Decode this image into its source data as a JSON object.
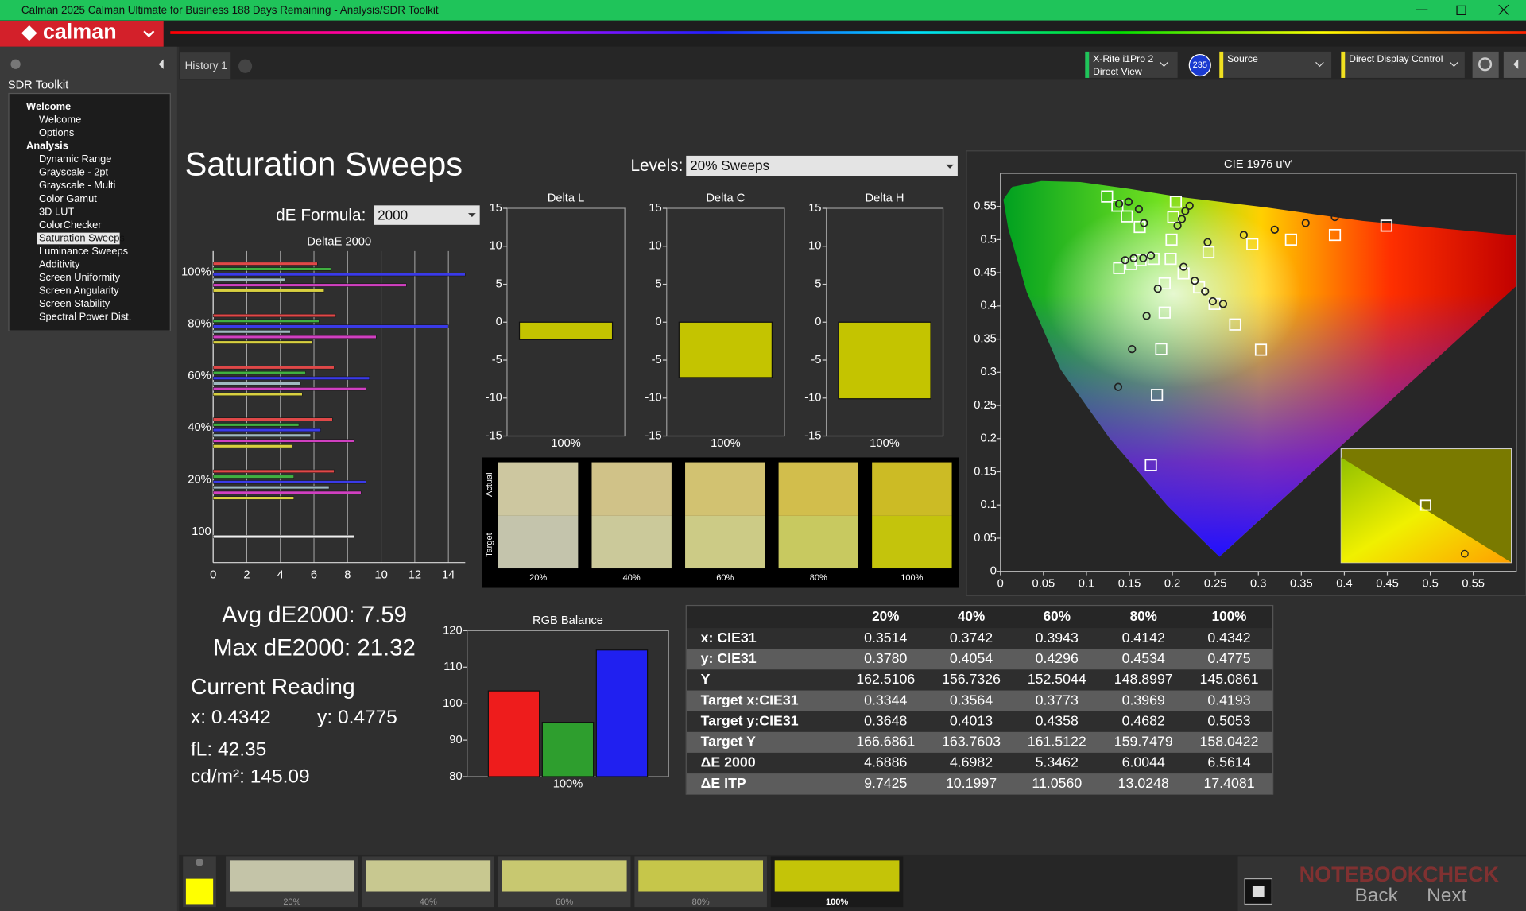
{
  "window": {
    "title": "Calman 2025 Calman Ultimate for Business 188 Days Remaining  - Analysis/SDR Toolkit"
  },
  "logo": "calman",
  "sidebar": {
    "title": "SDR Toolkit",
    "tree": [
      {
        "label": "Welcome",
        "header": true
      },
      {
        "label": "Welcome"
      },
      {
        "label": "Options"
      },
      {
        "label": "Analysis",
        "header": true
      },
      {
        "label": "Dynamic Range"
      },
      {
        "label": "Grayscale - 2pt"
      },
      {
        "label": "Grayscale - Multi"
      },
      {
        "label": "Color Gamut"
      },
      {
        "label": "3D LUT"
      },
      {
        "label": "ColorChecker"
      },
      {
        "label": "Saturation Sweeps",
        "selected": true
      },
      {
        "label": "Luminance Sweeps"
      },
      {
        "label": "Additivity"
      },
      {
        "label": "Screen Uniformity"
      },
      {
        "label": "Screen Angularity"
      },
      {
        "label": "Screen Stability"
      },
      {
        "label": "Spectral Power Dist."
      }
    ]
  },
  "tabs": [
    "History 1"
  ],
  "toolbar": {
    "meter": [
      "X-Rite i1Pro 2",
      "Direct View"
    ],
    "badge": "235",
    "source": "Source",
    "display": "Direct Display Control"
  },
  "page_title": "Saturation Sweeps",
  "levels": {
    "label": "Levels:",
    "value": "20% Sweeps"
  },
  "formula": {
    "label": "dE Formula:",
    "value": "2000"
  },
  "chart_data": [
    {
      "type": "hbar",
      "title": "DeltaE 2000",
      "categories": [
        "100%",
        "80%",
        "60%",
        "40%",
        "20%",
        "100"
      ],
      "xlim": [
        0,
        15
      ],
      "xticks": [
        0,
        2,
        4,
        6,
        8,
        10,
        12,
        14
      ],
      "grid": true,
      "series": [
        {
          "color": "#e04848",
          "values": [
            6.2,
            7.3,
            7.2,
            7.1,
            7.2,
            null
          ]
        },
        {
          "color": "#40b040",
          "values": [
            7.0,
            6.3,
            5.5,
            5.1,
            4.8,
            null
          ]
        },
        {
          "color": "#3a3ae8",
          "values": [
            15.0,
            14.0,
            9.3,
            6.4,
            9.1,
            null
          ]
        },
        {
          "color": "#9fb8c0",
          "values": [
            4.3,
            4.6,
            5.2,
            5.8,
            6.9,
            null
          ]
        },
        {
          "color": "#d040c0",
          "values": [
            11.5,
            9.7,
            9.1,
            8.4,
            8.8,
            null
          ]
        },
        {
          "color": "#d8d040",
          "values": [
            6.6,
            5.9,
            5.3,
            4.7,
            4.8,
            null
          ]
        },
        {
          "color": "#f0f0f0",
          "values": [
            null,
            null,
            null,
            null,
            null,
            8.4
          ]
        }
      ]
    },
    {
      "type": "bar",
      "title": "Delta L",
      "categories": [
        "100%"
      ],
      "ylim": [
        -15,
        15
      ],
      "yticks": [
        -15,
        -10,
        -5,
        0,
        5,
        10,
        15
      ],
      "series": [
        {
          "color": "#c4c400",
          "values": [
            -2.3
          ]
        }
      ]
    },
    {
      "type": "bar",
      "title": "Delta C",
      "categories": [
        "100%"
      ],
      "ylim": [
        -15,
        15
      ],
      "yticks": [
        -15,
        -10,
        -5,
        0,
        5,
        10,
        15
      ],
      "series": [
        {
          "color": "#c4c400",
          "values": [
            -7.3
          ]
        }
      ]
    },
    {
      "type": "bar",
      "title": "Delta H",
      "categories": [
        "100%"
      ],
      "ylim": [
        -15,
        15
      ],
      "yticks": [
        -15,
        -10,
        -5,
        0,
        5,
        10,
        15
      ],
      "series": [
        {
          "color": "#c4c400",
          "values": [
            -10.1
          ]
        }
      ]
    },
    {
      "type": "bar",
      "title": "RGB Balance",
      "categories": [
        "100%"
      ],
      "ylim": [
        80,
        120
      ],
      "yticks": [
        80,
        90,
        100,
        110,
        120
      ],
      "series": [
        {
          "color": "#ee1c1c",
          "values": [
            103.5
          ]
        },
        {
          "color": "#2e9e2e",
          "values": [
            94.9
          ]
        },
        {
          "color": "#2020f0",
          "values": [
            114.7
          ]
        }
      ]
    },
    {
      "type": "scatter",
      "title": "CIE 1976 u'v'",
      "xlim": [
        0,
        0.6
      ],
      "ylim": [
        0,
        0.6
      ],
      "xticks": [
        0,
        0.05,
        0.1,
        0.15,
        0.2,
        0.25,
        0.3,
        0.35,
        0.4,
        0.45,
        0.5,
        0.55
      ],
      "yticks": [
        0,
        0.05,
        0.1,
        0.15,
        0.2,
        0.25,
        0.3,
        0.35,
        0.4,
        0.45,
        0.5,
        0.55
      ],
      "series": [
        {
          "marker": "square",
          "color": "#ffffff",
          "x": [
            0.124,
            0.136,
            0.147,
            0.162,
            0.204,
            0.201,
            0.199,
            0.198,
            0.242,
            0.293,
            0.338,
            0.389,
            0.449,
            0.191,
            0.191,
            0.187,
            0.182,
            0.175,
            0.178,
            0.163,
            0.152,
            0.138,
            0.213,
            0.231,
            0.249,
            0.273,
            0.303
          ],
          "values": [
            0.565,
            0.551,
            0.535,
            0.519,
            0.557,
            0.534,
            0.5,
            0.471,
            0.481,
            0.493,
            0.5,
            0.507,
            0.521,
            0.434,
            0.39,
            0.335,
            0.266,
            0.16,
            0.471,
            0.469,
            0.463,
            0.457,
            0.449,
            0.428,
            0.403,
            0.372,
            0.334
          ]
        },
        {
          "marker": "circle",
          "color": "#222222",
          "x": [
            0.241,
            0.283,
            0.319,
            0.355,
            0.389,
            0.183,
            0.17,
            0.153,
            0.137,
            0.213,
            0.226,
            0.238,
            0.247,
            0.259,
            0.138,
            0.149,
            0.161,
            0.167,
            0.175,
            0.166,
            0.155,
            0.145,
            0.22,
            0.215,
            0.211,
            0.206
          ],
          "values": [
            0.496,
            0.507,
            0.515,
            0.525,
            0.534,
            0.426,
            0.385,
            0.335,
            0.278,
            0.459,
            0.438,
            0.422,
            0.407,
            0.403,
            0.554,
            0.557,
            0.546,
            0.525,
            0.476,
            0.472,
            0.472,
            0.469,
            0.551,
            0.543,
            0.531,
            0.521
          ]
        }
      ]
    }
  ],
  "swatches": {
    "row_labels": [
      "Actual",
      "Target"
    ],
    "items": [
      {
        "label": "20%",
        "actual": "#cdc7a0",
        "target": "#c4c4ac"
      },
      {
        "label": "40%",
        "actual": "#d0c288",
        "target": "#cbc99a"
      },
      {
        "label": "60%",
        "actual": "#d2c271",
        "target": "#cccb86"
      },
      {
        "label": "80%",
        "actual": "#d2be4c",
        "target": "#c8c960"
      },
      {
        "label": "100%",
        "actual": "#ccbb25",
        "target": "#c4c40c"
      }
    ]
  },
  "stats": {
    "avg": "Avg dE2000: 7.59",
    "max": "Max dE2000: 21.32",
    "reading_title": "Current Reading",
    "x": "x: 0.4342",
    "y": "y: 0.4775",
    "fl": "fL: 42.35",
    "cdm2": "cd/m²: 145.09"
  },
  "table": {
    "columns": [
      "20%",
      "40%",
      "60%",
      "80%",
      "100%"
    ],
    "rows": [
      [
        "x: CIE31",
        "0.3514",
        "0.3742",
        "0.3943",
        "0.4142",
        "0.4342"
      ],
      [
        "y: CIE31",
        "0.3780",
        "0.4054",
        "0.4296",
        "0.4534",
        "0.4775"
      ],
      [
        "Y",
        "162.5106",
        "156.7326",
        "152.5044",
        "148.8997",
        "145.0861"
      ],
      [
        "Target x:CIE31",
        "0.3344",
        "0.3564",
        "0.3773",
        "0.3969",
        "0.4193"
      ],
      [
        "Target y:CIE31",
        "0.3648",
        "0.4013",
        "0.4358",
        "0.4682",
        "0.5053"
      ],
      [
        "Target Y",
        "166.6861",
        "163.7603",
        "161.5122",
        "159.7479",
        "158.0422"
      ],
      [
        "ΔE 2000",
        "4.6886",
        "4.6982",
        "5.3462",
        "6.0044",
        "6.5614"
      ],
      [
        "ΔE ITP",
        "9.7425",
        "10.1997",
        "11.0560",
        "13.0248",
        "17.4081"
      ]
    ]
  },
  "bottom_bar": {
    "items": [
      {
        "label": "20%",
        "color": "#c4c4a8"
      },
      {
        "label": "40%",
        "color": "#c8c890"
      },
      {
        "label": "60%",
        "color": "#c8c870"
      },
      {
        "label": "80%",
        "color": "#c6c64a"
      },
      {
        "label": "100%",
        "color": "#c4c408",
        "selected": true
      }
    ],
    "back": "Back",
    "next": "Next"
  },
  "watermark": "NOTEBOOKCHECK"
}
